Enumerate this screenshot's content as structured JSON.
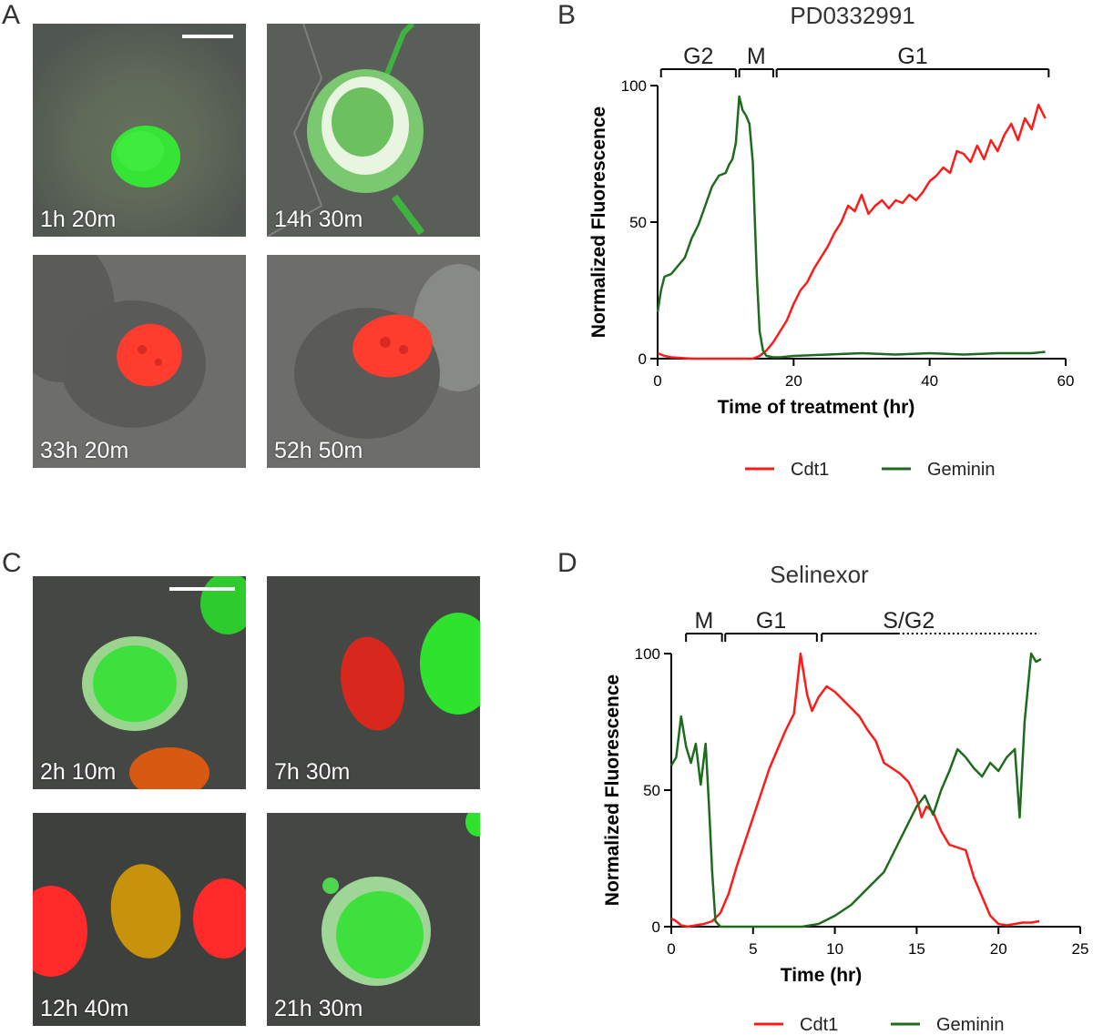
{
  "panels": {
    "a": {
      "letter": "A",
      "timestamps": [
        "1h 20m",
        "14h 30m",
        "33h 20m",
        "52h 50m"
      ]
    },
    "b": {
      "letter": "B"
    },
    "c": {
      "letter": "C",
      "timestamps": [
        "2h 10m",
        "7h 30m",
        "12h 40m",
        "21h 30m"
      ]
    },
    "d": {
      "letter": "D"
    }
  },
  "colors": {
    "cdt1": "#ff1a1a",
    "geminin": "#1e6b1e",
    "axis": "#000000"
  },
  "chart_data": [
    {
      "type": "line",
      "title": "PD0332991",
      "xlabel": "Time of treatment (hr)",
      "ylabel": "Normalized Fluorescence",
      "xlim": [
        0,
        60
      ],
      "ylim": [
        0,
        100
      ],
      "xticks": [
        0,
        20,
        40,
        60
      ],
      "yticks": [
        0,
        50,
        100
      ],
      "phases": [
        {
          "label": "G2",
          "start": 0.5,
          "end": 11.5,
          "style": "solid"
        },
        {
          "label": "M",
          "start": 12,
          "end": 17,
          "style": "solid"
        },
        {
          "label": "G1",
          "start": 17.5,
          "end": 57.5,
          "style": "solid"
        }
      ],
      "legend": [
        "Cdt1",
        "Geminin"
      ],
      "legend_position": "bottom",
      "series": [
        {
          "name": "Cdt1",
          "x": [
            0,
            1,
            2,
            5,
            10,
            14,
            15,
            16,
            17,
            18,
            19,
            20,
            21,
            22,
            23,
            24,
            25,
            26,
            27,
            28,
            29,
            30,
            31,
            32,
            33,
            34,
            35,
            36,
            37,
            38,
            39,
            40,
            41,
            42,
            43,
            44,
            45,
            46,
            47,
            48,
            49,
            50,
            51,
            52,
            53,
            54,
            55,
            56,
            57
          ],
          "y": [
            2,
            1,
            0.5,
            0,
            0,
            0,
            1,
            3,
            6,
            10,
            14,
            20,
            25,
            28,
            33,
            37,
            41,
            46,
            50,
            56,
            54,
            60,
            53,
            56,
            58,
            55,
            58,
            57,
            60,
            58,
            61,
            65,
            67,
            70,
            68,
            76,
            75,
            72,
            78,
            73,
            80,
            76,
            82,
            86,
            80,
            88,
            84,
            93,
            88
          ]
        },
        {
          "name": "Geminin",
          "x": [
            0,
            0.5,
            1,
            2,
            3,
            4,
            5,
            6,
            7,
            8,
            9,
            10,
            10.5,
            11,
            11.5,
            12,
            12.5,
            13,
            13.5,
            14,
            14.3,
            14.6,
            15,
            15.5,
            16,
            17,
            18,
            20,
            25,
            30,
            35,
            40,
            45,
            50,
            55,
            57
          ],
          "y": [
            17,
            25,
            30,
            31,
            34,
            37,
            44,
            49,
            56,
            63,
            67,
            68,
            71,
            73,
            79,
            96,
            91,
            89,
            86,
            72,
            50,
            30,
            10,
            3,
            1,
            0.5,
            0.5,
            1,
            1.5,
            2,
            1.5,
            2,
            1.5,
            2,
            2,
            2.5
          ]
        }
      ]
    },
    {
      "type": "line",
      "title": "Selinexor",
      "xlabel": "Time (hr)",
      "ylabel": "Normalized Fluorescence",
      "xlim": [
        0,
        25
      ],
      "ylim": [
        0,
        100
      ],
      "xticks": [
        0,
        5,
        10,
        15,
        20,
        25
      ],
      "yticks": [
        0,
        50,
        100
      ],
      "phases": [
        {
          "label": "M",
          "start": 0.9,
          "end": 3.1,
          "style": "solid"
        },
        {
          "label": "G1",
          "start": 3.3,
          "end": 8.9,
          "style": "solid"
        },
        {
          "label": "S/G2",
          "start": 9.2,
          "end": 22.5,
          "style": "solid-then-dotted"
        }
      ],
      "legend": [
        "Cdt1",
        "Geminin"
      ],
      "legend_position": "bottom",
      "series": [
        {
          "name": "Cdt1",
          "x": [
            0,
            0.3,
            0.6,
            1,
            1.5,
            2,
            2.5,
            3,
            3.5,
            4,
            4.5,
            5,
            5.5,
            6,
            6.5,
            7,
            7.5,
            7.9,
            8.3,
            8.6,
            9,
            9.5,
            10,
            10.5,
            11,
            11.5,
            12,
            12.5,
            13,
            13.5,
            14,
            14.5,
            15,
            15.3,
            15.6,
            16,
            16.5,
            17,
            17.5,
            18,
            18.5,
            19,
            19.5,
            20,
            20.5,
            21,
            21.5,
            22,
            22.5
          ],
          "y": [
            3,
            2,
            0.5,
            0,
            0.5,
            1,
            2,
            5,
            12,
            22,
            31,
            40,
            49,
            58,
            65,
            72,
            78,
            100,
            85,
            79,
            84,
            88,
            86,
            83,
            80,
            77,
            72,
            68,
            60,
            58,
            56,
            53,
            47,
            40,
            44,
            42,
            35,
            30,
            29,
            28,
            18,
            11,
            4,
            1,
            0.5,
            1,
            1.5,
            1.5,
            2
          ]
        },
        {
          "name": "Geminin",
          "x": [
            0,
            0.3,
            0.6,
            0.9,
            1.2,
            1.5,
            1.8,
            2.1,
            2.3,
            2.5,
            2.7,
            3,
            4,
            6,
            8,
            9,
            10,
            11,
            12,
            13,
            13.5,
            14,
            14.5,
            15,
            15.5,
            16,
            16.5,
            17,
            17.5,
            18,
            18.5,
            19,
            19.5,
            20,
            20.5,
            21,
            21.3,
            21.6,
            22,
            22.3,
            22.6
          ],
          "y": [
            59,
            62,
            77,
            66,
            60,
            67,
            52,
            67,
            45,
            20,
            2,
            0,
            0,
            0,
            0,
            1,
            4,
            8,
            14,
            20,
            26,
            32,
            38,
            44,
            48,
            41,
            50,
            57,
            65,
            62,
            58,
            55,
            60,
            57,
            62,
            65,
            40,
            75,
            100,
            97,
            98
          ]
        }
      ]
    }
  ]
}
